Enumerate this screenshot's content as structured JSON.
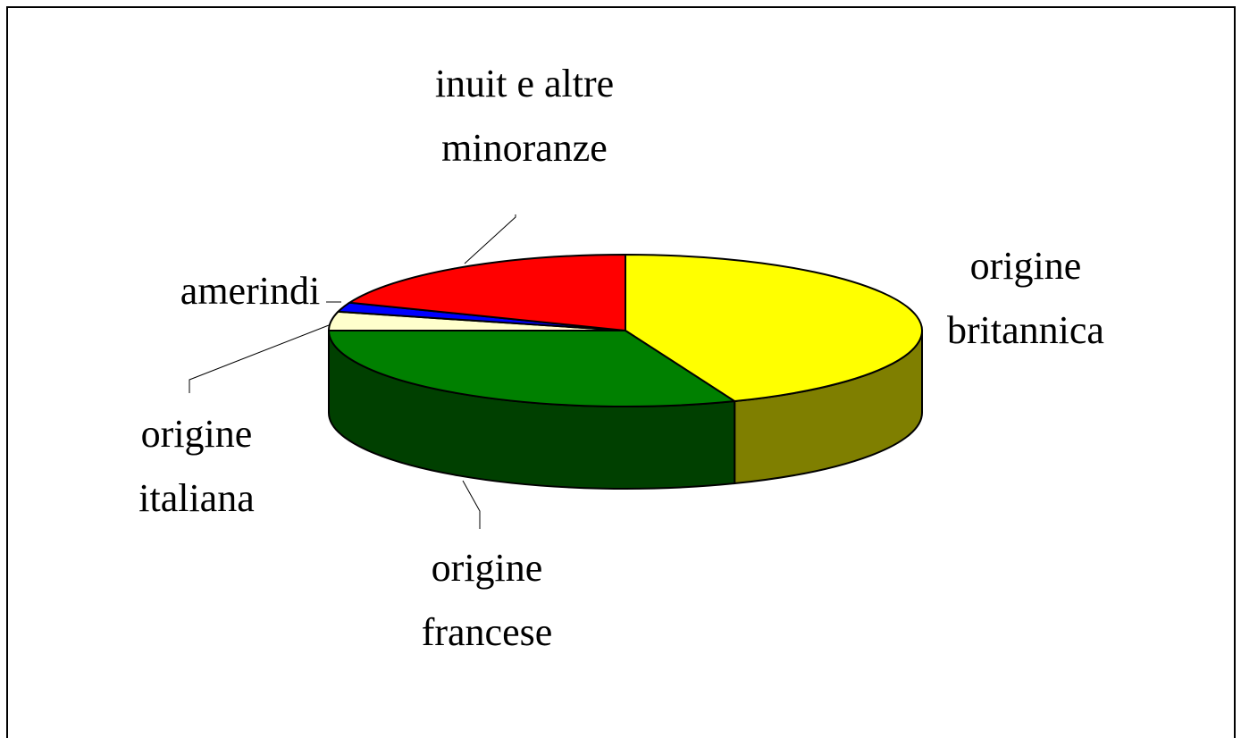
{
  "chart_data": {
    "type": "pie3d",
    "categories": [
      "origine britannica",
      "origine francese",
      "origine italiana",
      "amerindi",
      "inuit e altre minoranze"
    ],
    "values": [
      44,
      31,
      4,
      2,
      19
    ],
    "colors": [
      "#ffff00",
      "#008000",
      "#ffffcc",
      "#0000ff",
      "#ff0000"
    ]
  }
}
